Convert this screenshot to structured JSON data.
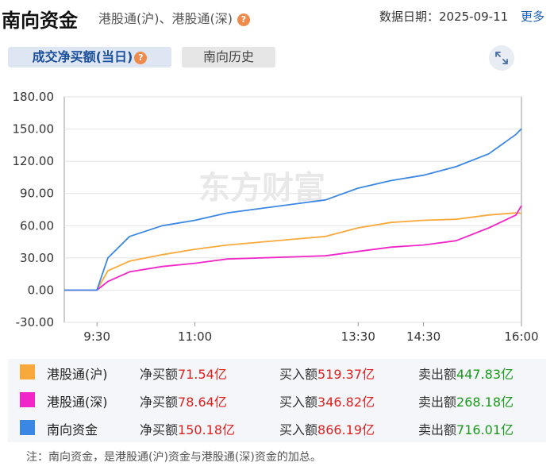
{
  "header": {
    "title": "南向资金",
    "subtitle": "港股通(沪)、港股通(深)",
    "help": "?",
    "date_label": "数据日期：2025-09-11",
    "more": "更多"
  },
  "tabs": [
    {
      "label": "成交净买额(当日)",
      "active": true
    },
    {
      "label": "南向历史",
      "active": false
    }
  ],
  "watermark": "东方财富",
  "chart_data": {
    "type": "line",
    "y_ticks": [
      "180.00",
      "150.00",
      "120.00",
      "90.00",
      "60.00",
      "30.00",
      "0.00",
      "-30.00"
    ],
    "ylim": [
      -30,
      180
    ],
    "x_ticks": [
      "9:30",
      "11:00",
      "13:30",
      "14:30",
      "16:00"
    ],
    "x": [
      "09:00",
      "09:30",
      "09:40",
      "10:00",
      "10:30",
      "11:00",
      "11:30",
      "13:00",
      "13:30",
      "14:00",
      "14:30",
      "15:00",
      "15:30",
      "15:55",
      "16:00"
    ],
    "series": [
      {
        "name": "港股通(沪)",
        "color": "#f9a93b",
        "values": [
          0,
          0,
          18,
          27,
          33,
          38,
          42,
          50,
          58,
          63,
          65,
          66,
          70,
          72,
          71.54
        ]
      },
      {
        "name": "港股通(深)",
        "color": "#f026c8",
        "values": [
          0,
          0,
          8,
          17,
          22,
          25,
          29,
          32,
          36,
          40,
          42,
          46,
          58,
          70,
          78.64
        ]
      },
      {
        "name": "南向资金",
        "color": "#3b87e4",
        "values": [
          0,
          0,
          30,
          50,
          60,
          65,
          72,
          84,
          95,
          102,
          107,
          115,
          127,
          145,
          150.18
        ]
      }
    ]
  },
  "legend": [
    {
      "name": "港股通(沪)",
      "color": "#f9a93b",
      "net_label": "净买额",
      "net": "71.54亿",
      "buy_label": "买入额",
      "buy": "519.37亿",
      "sell_label": "卖出额",
      "sell": "447.83亿"
    },
    {
      "name": "港股通(深)",
      "color": "#f026c8",
      "net_label": "净买额",
      "net": "78.64亿",
      "buy_label": "买入额",
      "buy": "346.82亿",
      "sell_label": "卖出额",
      "sell": "268.18亿"
    },
    {
      "name": "南向资金",
      "color": "#3b87e4",
      "net_label": "净买额",
      "net": "150.18亿",
      "buy_label": "买入额",
      "buy": "866.19亿",
      "sell_label": "卖出额",
      "sell": "716.01亿"
    }
  ],
  "note": "注：南向资金，是港股通(沪)资金与港股通(深)资金的加总。"
}
